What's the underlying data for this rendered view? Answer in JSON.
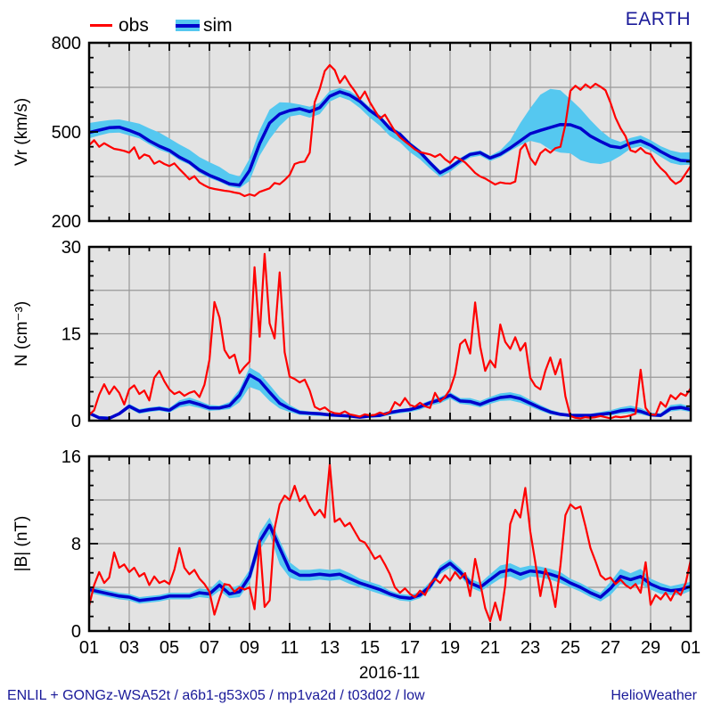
{
  "header": {
    "legend": {
      "obs_label": "obs",
      "sim_label": "sim"
    },
    "title": "EARTH"
  },
  "footer": {
    "model_info": "ENLIL + GONGz-WSA52t / a6b1-g53x05 / mp1va2d / t03d02 / low",
    "site": "HelioWeather"
  },
  "colors": {
    "obs": "#ff0000",
    "sim": "#0000cc",
    "band": "#55c8f0",
    "plot_bg": "#e3e3e3",
    "grid": "#999999",
    "frame": "#000000",
    "annotation": "#1a1a99"
  },
  "x_axis": {
    "title": "2016-11",
    "tick_labels": [
      "01",
      "03",
      "05",
      "07",
      "09",
      "11",
      "13",
      "15",
      "17",
      "19",
      "21",
      "23",
      "25",
      "27",
      "29",
      "01"
    ],
    "tick_days": [
      1,
      3,
      5,
      7,
      9,
      11,
      13,
      15,
      17,
      19,
      21,
      23,
      25,
      27,
      29,
      31
    ],
    "range_days": [
      1,
      31
    ]
  },
  "chart_data": [
    {
      "type": "line",
      "id": "vr",
      "ylabel": "Vr (km/s)",
      "ylim": [
        200,
        800
      ],
      "yticks": [
        200,
        500,
        800
      ],
      "yminor_step": 50,
      "ygrid": [
        350,
        500,
        650
      ],
      "series_obs": {
        "name": "obs",
        "x_start": 1,
        "x_step": 0.25,
        "values": [
          455,
          472,
          450,
          462,
          452,
          443,
          440,
          436,
          430,
          448,
          410,
          424,
          418,
          393,
          402,
          392,
          385,
          394,
          375,
          358,
          340,
          351,
          330,
          320,
          312,
          308,
          305,
          302,
          300,
          296,
          293,
          284,
          290,
          285,
          298,
          304,
          310,
          328,
          324,
          338,
          355,
          392,
          398,
          400,
          430,
          600,
          645,
          705,
          725,
          708,
          665,
          688,
          660,
          637,
          610,
          636,
          600,
          572,
          545,
          558,
          530,
          502,
          482,
          468,
          455,
          441,
          432,
          428,
          424,
          416,
          425,
          408,
          396,
          416,
          408,
          397,
          380,
          362,
          350,
          343,
          333,
          323,
          330,
          327,
          326,
          333,
          440,
          460,
          412,
          390,
          428,
          442,
          430,
          445,
          450,
          525,
          638,
          655,
          642,
          660,
          648,
          662,
          652,
          640,
          598,
          548,
          512,
          485,
          438,
          432,
          446,
          430,
          425,
          398,
          378,
          363,
          340,
          325,
          335,
          360,
          385
        ]
      },
      "series_sim": {
        "name": "sim",
        "x_start": 1,
        "x_step": 0.5,
        "values": [
          498,
          506,
          514,
          516,
          505,
          492,
          470,
          452,
          438,
          415,
          398,
          372,
          354,
          340,
          325,
          321,
          370,
          460,
          530,
          560,
          572,
          578,
          568,
          582,
          620,
          635,
          624,
          603,
          572,
          548,
          511,
          492,
          458,
          432,
          396,
          362,
          380,
          404,
          424,
          430,
          412,
          425,
          446,
          470,
          494,
          505,
          515,
          525,
          524,
          512,
          486,
          468,
          452,
          447,
          462,
          470,
          455,
          434,
          416,
          404,
          402
        ]
      },
      "band_hi": [
        530,
        535,
        540,
        542,
        535,
        528,
        512,
        498,
        478,
        458,
        440,
        415,
        398,
        382,
        360,
        350,
        410,
        505,
        575,
        600,
        598,
        592,
        585,
        598,
        638,
        648,
        638,
        614,
        582,
        556,
        520,
        500,
        466,
        440,
        404,
        370,
        388,
        412,
        432,
        438,
        420,
        438,
        472,
        530,
        580,
        625,
        645,
        640,
        610,
        578,
        540,
        505,
        478,
        466,
        480,
        488,
        472,
        452,
        438,
        430,
        432
      ],
      "band_lo": [
        478,
        488,
        496,
        498,
        488,
        478,
        458,
        440,
        428,
        405,
        390,
        362,
        345,
        332,
        316,
        310,
        335,
        420,
        475,
        520,
        552,
        558,
        548,
        560,
        602,
        618,
        606,
        580,
        548,
        520,
        486,
        465,
        432,
        408,
        376,
        348,
        366,
        392,
        414,
        420,
        402,
        415,
        436,
        455,
        470,
        462,
        440,
        430,
        428,
        405,
        395,
        392,
        400,
        420,
        444,
        452,
        438,
        416,
        396,
        388,
        390
      ]
    },
    {
      "type": "line",
      "id": "n",
      "ylabel": "N (cm⁻³)",
      "ylim": [
        0,
        30
      ],
      "yticks": [
        0,
        15,
        30
      ],
      "yminor_step": 2.5,
      "ygrid": [
        7.5,
        15,
        22.5
      ],
      "series_obs": {
        "name": "obs",
        "x_start": 1,
        "x_step": 0.25,
        "values": [
          1.0,
          1.8,
          4.5,
          6.3,
          4.6,
          5.9,
          4.8,
          2.8,
          5.4,
          6.1,
          4.6,
          5.2,
          3.5,
          7.4,
          8.6,
          6.8,
          5.4,
          4.6,
          5.0,
          4.3,
          4.8,
          5.1,
          4.1,
          6.2,
          10.5,
          20.5,
          17.8,
          12.2,
          10.8,
          11.4,
          8.2,
          9.3,
          10.2,
          26.5,
          14.5,
          28.8,
          16.8,
          14.2,
          25.6,
          11.8,
          7.6,
          7.2,
          6.6,
          7.1,
          5.2,
          2.4,
          1.9,
          2.3,
          1.6,
          1.3,
          1.2,
          1.6,
          1.1,
          0.9,
          0.7,
          1.1,
          0.9,
          1.0,
          1.4,
          1.1,
          1.5,
          3.2,
          2.6,
          3.9,
          2.7,
          2.4,
          3.1,
          2.5,
          2.2,
          4.8,
          3.3,
          4.1,
          5.4,
          8.0,
          13.2,
          14.0,
          11.6,
          20.4,
          12.8,
          8.6,
          10.4,
          9.2,
          16.6,
          13.6,
          12.4,
          14.4,
          12.1,
          13.4,
          7.4,
          6.0,
          5.4,
          8.6,
          10.9,
          8.0,
          10.6,
          4.2,
          0.8,
          0.5,
          0.4,
          0.6,
          0.5,
          0.6,
          0.8,
          0.6,
          0.4,
          0.7,
          0.6,
          0.7,
          0.9,
          1.2,
          8.8,
          2.2,
          1.1,
          1.0,
          3.2,
          2.4,
          4.4,
          3.7,
          4.7,
          4.3,
          5.6
        ]
      },
      "series_sim": {
        "name": "sim",
        "x_start": 1,
        "x_step": 0.5,
        "values": [
          1.3,
          0.5,
          0.4,
          1.2,
          2.5,
          1.6,
          1.9,
          2.1,
          1.8,
          2.9,
          3.3,
          2.8,
          2.2,
          2.2,
          2.6,
          4.4,
          7.9,
          6.9,
          4.9,
          3.0,
          2.1,
          1.4,
          1.3,
          1.2,
          1.0,
          0.9,
          0.8,
          0.6,
          0.8,
          0.9,
          1.4,
          1.7,
          1.9,
          2.4,
          3.1,
          3.6,
          4.4,
          3.4,
          3.3,
          2.8,
          3.5,
          4.0,
          4.2,
          3.8,
          3.0,
          2.2,
          1.5,
          1.1,
          0.9,
          0.9,
          0.9,
          1.1,
          1.3,
          1.7,
          1.9,
          1.6,
          1.0,
          0.9,
          2.1,
          2.3,
          1.9
        ]
      },
      "band_hi": [
        1.6,
        0.8,
        0.7,
        1.5,
        2.9,
        2.0,
        2.3,
        2.5,
        2.2,
        3.5,
        4.0,
        3.4,
        2.7,
        2.6,
        3.2,
        5.4,
        9.2,
        8.2,
        6.2,
        4.1,
        2.7,
        1.8,
        1.6,
        1.5,
        1.2,
        1.1,
        1.0,
        0.8,
        1.0,
        1.1,
        1.7,
        2.0,
        2.2,
        2.8,
        3.5,
        4.1,
        4.9,
        3.9,
        3.9,
        3.4,
        4.1,
        4.7,
        4.9,
        4.5,
        3.6,
        2.7,
        1.9,
        1.4,
        1.2,
        1.2,
        1.2,
        1.5,
        1.8,
        2.3,
        2.6,
        2.2,
        1.4,
        1.3,
        2.7,
        2.9,
        2.4
      ],
      "band_lo": [
        1.0,
        0.3,
        0.2,
        0.9,
        2.1,
        1.2,
        1.5,
        1.7,
        1.4,
        2.3,
        2.6,
        2.2,
        1.7,
        1.8,
        2.0,
        3.2,
        5.8,
        5.2,
        3.4,
        2.1,
        1.5,
        1.0,
        0.9,
        0.8,
        0.7,
        0.6,
        0.5,
        0.4,
        0.5,
        0.6,
        1.0,
        1.3,
        1.5,
        1.9,
        2.6,
        3.0,
        3.8,
        2.9,
        2.7,
        2.3,
        2.9,
        3.4,
        3.5,
        3.1,
        2.4,
        1.7,
        1.1,
        0.8,
        0.6,
        0.6,
        0.6,
        0.8,
        0.9,
        1.2,
        1.3,
        1.1,
        0.7,
        0.6,
        1.6,
        1.8,
        1.5
      ]
    },
    {
      "type": "line",
      "id": "b",
      "ylabel": "|B| (nT)",
      "ylim": [
        0,
        16
      ],
      "yticks": [
        0,
        8,
        16
      ],
      "yminor_step": 1.3333,
      "ygrid": [
        4,
        8,
        12
      ],
      "series_obs": {
        "name": "obs",
        "x_start": 1,
        "x_step": 0.25,
        "values": [
          2.3,
          4.2,
          5.4,
          4.4,
          4.9,
          7.2,
          5.8,
          6.1,
          5.4,
          5.8,
          5.0,
          5.3,
          4.2,
          5.0,
          4.4,
          4.6,
          4.3,
          5.6,
          7.6,
          5.8,
          5.2,
          5.6,
          4.8,
          4.3,
          3.6,
          1.5,
          3.0,
          4.3,
          4.2,
          3.6,
          4.0,
          3.8,
          4.0,
          2.0,
          8.3,
          2.2,
          2.8,
          9.4,
          11.6,
          12.4,
          12.0,
          13.3,
          11.9,
          12.4,
          11.4,
          10.6,
          11.1,
          10.4,
          15.3,
          10.0,
          10.3,
          9.6,
          9.9,
          9.1,
          8.3,
          8.1,
          7.4,
          6.6,
          6.9,
          6.1,
          5.2,
          4.0,
          3.5,
          3.9,
          3.4,
          3.1,
          3.7,
          3.3,
          4.3,
          4.8,
          4.4,
          5.1,
          4.6,
          5.4,
          4.8,
          5.3,
          3.2,
          6.6,
          4.4,
          2.1,
          0.9,
          2.6,
          1.0,
          4.2,
          9.8,
          11.1,
          10.4,
          13.1,
          9.1,
          6.3,
          3.2,
          5.7,
          4.5,
          2.2,
          6.0,
          10.6,
          11.6,
          11.2,
          11.4,
          9.6,
          7.6,
          6.4,
          5.1,
          4.7,
          4.9,
          4.3,
          4.7,
          4.2,
          3.9,
          4.3,
          3.5,
          6.3,
          2.4,
          3.3,
          2.9,
          3.5,
          2.8,
          3.7,
          3.3,
          4.4,
          6.5
        ]
      },
      "series_sim": {
        "name": "sim",
        "x_start": 1,
        "x_step": 0.5,
        "values": [
          3.8,
          3.6,
          3.4,
          3.2,
          3.1,
          2.8,
          2.9,
          3.0,
          3.2,
          3.2,
          3.2,
          3.5,
          3.4,
          4.2,
          3.4,
          3.6,
          5.0,
          8.2,
          9.7,
          7.6,
          5.6,
          5.1,
          5.1,
          5.2,
          5.1,
          5.2,
          4.8,
          4.4,
          4.1,
          3.8,
          3.4,
          3.1,
          3.0,
          3.3,
          4.1,
          5.6,
          6.2,
          5.4,
          4.4,
          4.0,
          4.7,
          5.4,
          5.6,
          5.2,
          5.5,
          5.4,
          5.2,
          4.9,
          4.4,
          4.0,
          3.5,
          3.1,
          3.9,
          5.0,
          4.7,
          5.0,
          4.3,
          3.9,
          3.7,
          3.8,
          4.1
        ]
      },
      "band_hi": [
        4.1,
        3.9,
        3.7,
        3.5,
        3.4,
        3.1,
        3.2,
        3.3,
        3.5,
        3.5,
        3.5,
        3.9,
        3.8,
        4.7,
        3.9,
        4.2,
        5.6,
        9.0,
        10.4,
        8.3,
        6.3,
        5.6,
        5.6,
        5.7,
        5.6,
        5.7,
        5.3,
        4.8,
        4.5,
        4.2,
        3.7,
        3.4,
        3.3,
        3.6,
        4.5,
        6.0,
        6.6,
        5.8,
        4.8,
        4.4,
        5.2,
        6.0,
        6.2,
        5.8,
        6.0,
        5.9,
        5.7,
        5.4,
        4.8,
        4.4,
        3.9,
        3.5,
        4.5,
        5.7,
        5.3,
        5.7,
        4.8,
        4.4,
        4.1,
        4.3,
        4.5
      ],
      "band_lo": [
        3.5,
        3.3,
        3.1,
        2.9,
        2.8,
        2.5,
        2.6,
        2.7,
        2.9,
        2.9,
        2.9,
        3.1,
        3.0,
        3.7,
        3.0,
        3.1,
        4.4,
        7.4,
        8.9,
        6.1,
        4.9,
        4.6,
        4.6,
        4.7,
        4.6,
        4.7,
        4.3,
        4.0,
        3.7,
        3.4,
        3.1,
        2.8,
        2.7,
        3.0,
        3.7,
        5.2,
        5.8,
        5.0,
        4.0,
        3.6,
        4.2,
        4.8,
        5.0,
        4.6,
        5.0,
        4.9,
        4.7,
        4.4,
        4.0,
        3.6,
        3.1,
        2.7,
        3.3,
        4.3,
        4.1,
        4.3,
        3.8,
        3.4,
        3.3,
        3.3,
        3.7
      ]
    }
  ]
}
